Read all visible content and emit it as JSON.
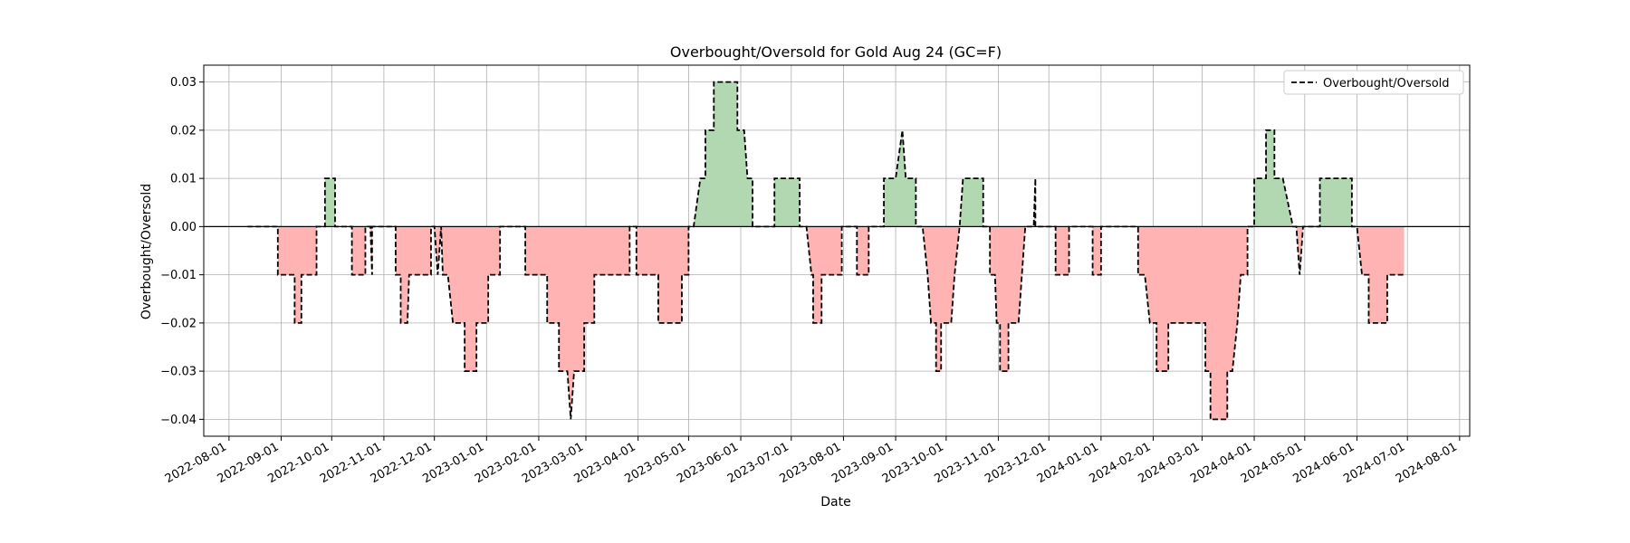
{
  "chart_data": {
    "type": "area",
    "title": "Overbought/Oversold for Gold Aug 24 (GC=F)",
    "xlabel": "Date",
    "ylabel": "Overbought/Oversold",
    "legend": {
      "placement": "upper right",
      "entries": [
        "Overbought/Oversold"
      ]
    },
    "grid": true,
    "xlim": [
      "2022-07-17",
      "2024-08-07"
    ],
    "ylim": [
      -0.0435,
      0.0335
    ],
    "x_ticks": [
      "2022-08-01",
      "2022-09-01",
      "2022-10-01",
      "2022-11-01",
      "2022-12-01",
      "2023-01-01",
      "2023-02-01",
      "2023-03-01",
      "2023-04-01",
      "2023-05-01",
      "2023-06-01",
      "2023-07-01",
      "2023-08-01",
      "2023-09-01",
      "2023-10-01",
      "2023-11-01",
      "2023-12-01",
      "2024-01-01",
      "2024-02-01",
      "2024-03-01",
      "2024-04-01",
      "2024-05-01",
      "2024-06-01",
      "2024-07-01",
      "2024-08-01"
    ],
    "y_ticks": [
      "−0.04",
      "−0.03",
      "−0.02",
      "−0.01",
      "0.00",
      "0.01",
      "0.02",
      "0.03"
    ],
    "y_tick_values": [
      -0.04,
      -0.03,
      -0.02,
      -0.01,
      0.0,
      0.01,
      0.02,
      0.03
    ],
    "fill_colors": {
      "positive": "#b2d8b2",
      "negative": "#ffb3b3"
    },
    "line_color": "#000000",
    "series": [
      {
        "name": "Overbought/Oversold",
        "points": [
          [
            "2022-08-12",
            0
          ],
          [
            "2022-08-30",
            0
          ],
          [
            "2022-08-30",
            -0.01
          ],
          [
            "2022-09-09",
            -0.01
          ],
          [
            "2022-09-09",
            -0.02
          ],
          [
            "2022-09-13",
            -0.02
          ],
          [
            "2022-09-13",
            -0.01
          ],
          [
            "2022-09-22",
            -0.01
          ],
          [
            "2022-09-22",
            0
          ],
          [
            "2022-09-27",
            0
          ],
          [
            "2022-09-27",
            0.01
          ],
          [
            "2022-10-03",
            0.01
          ],
          [
            "2022-10-03",
            0
          ],
          [
            "2022-10-10",
            0
          ],
          [
            "2022-10-13",
            0
          ],
          [
            "2022-10-13",
            -0.01
          ],
          [
            "2022-10-21",
            -0.01
          ],
          [
            "2022-10-21",
            0
          ],
          [
            "2022-10-24",
            0
          ],
          [
            "2022-10-25",
            -0.01
          ],
          [
            "2022-10-25",
            0
          ],
          [
            "2022-11-07",
            0
          ],
          [
            "2022-11-08",
            0
          ],
          [
            "2022-11-08",
            -0.01
          ],
          [
            "2022-11-11",
            -0.01
          ],
          [
            "2022-11-11",
            -0.02
          ],
          [
            "2022-11-15",
            -0.02
          ],
          [
            "2022-11-16",
            -0.01
          ],
          [
            "2022-11-29",
            -0.01
          ],
          [
            "2022-11-29",
            0
          ],
          [
            "2022-12-01",
            0
          ],
          [
            "2022-12-03",
            -0.01
          ],
          [
            "2022-12-05",
            0
          ],
          [
            "2022-12-06",
            -0.01
          ],
          [
            "2022-12-09",
            -0.01
          ],
          [
            "2022-12-12",
            -0.02
          ],
          [
            "2022-12-19",
            -0.02
          ],
          [
            "2022-12-19",
            -0.03
          ],
          [
            "2022-12-26",
            -0.03
          ],
          [
            "2022-12-26",
            -0.02
          ],
          [
            "2023-01-02",
            -0.02
          ],
          [
            "2023-01-02",
            -0.01
          ],
          [
            "2023-01-09",
            -0.01
          ],
          [
            "2023-01-09",
            0
          ],
          [
            "2023-01-13",
            0
          ],
          [
            "2023-01-23",
            0
          ],
          [
            "2023-01-24",
            0
          ],
          [
            "2023-01-24",
            -0.01
          ],
          [
            "2023-02-06",
            -0.01
          ],
          [
            "2023-02-06",
            -0.02
          ],
          [
            "2023-02-13",
            -0.02
          ],
          [
            "2023-02-13",
            -0.03
          ],
          [
            "2023-02-18",
            -0.03
          ],
          [
            "2023-02-20",
            -0.04
          ],
          [
            "2023-02-22",
            -0.03
          ],
          [
            "2023-02-28",
            -0.03
          ],
          [
            "2023-02-28",
            -0.02
          ],
          [
            "2023-03-06",
            -0.02
          ],
          [
            "2023-03-06",
            -0.01
          ],
          [
            "2023-03-27",
            -0.01
          ],
          [
            "2023-03-27",
            0
          ],
          [
            "2023-03-31",
            0
          ],
          [
            "2023-03-31",
            -0.01
          ],
          [
            "2023-04-13",
            -0.01
          ],
          [
            "2023-04-13",
            -0.02
          ],
          [
            "2023-04-27",
            -0.02
          ],
          [
            "2023-04-27",
            -0.01
          ],
          [
            "2023-05-01",
            -0.01
          ],
          [
            "2023-05-01",
            0
          ],
          [
            "2023-05-04",
            0
          ],
          [
            "2023-05-08",
            0.01
          ],
          [
            "2023-05-11",
            0.01
          ],
          [
            "2023-05-11",
            0.02
          ],
          [
            "2023-05-16",
            0.02
          ],
          [
            "2023-05-16",
            0.03
          ],
          [
            "2023-05-30",
            0.03
          ],
          [
            "2023-05-30",
            0.02
          ],
          [
            "2023-06-03",
            0.02
          ],
          [
            "2023-06-05",
            0.01
          ],
          [
            "2023-06-08",
            0.01
          ],
          [
            "2023-06-08",
            0
          ],
          [
            "2023-06-21",
            0
          ],
          [
            "2023-06-21",
            0.01
          ],
          [
            "2023-07-06",
            0.01
          ],
          [
            "2023-07-06",
            0
          ],
          [
            "2023-07-10",
            0
          ],
          [
            "2023-07-10",
            0
          ],
          [
            "2023-07-13",
            -0.01
          ],
          [
            "2023-07-14",
            -0.01
          ],
          [
            "2023-07-14",
            -0.02
          ],
          [
            "2023-07-19",
            -0.02
          ],
          [
            "2023-07-19",
            -0.01
          ],
          [
            "2023-07-31",
            -0.01
          ],
          [
            "2023-07-31",
            0
          ],
          [
            "2023-08-05",
            0
          ],
          [
            "2023-08-09",
            0
          ],
          [
            "2023-08-09",
            -0.01
          ],
          [
            "2023-08-16",
            -0.01
          ],
          [
            "2023-08-16",
            0
          ],
          [
            "2023-08-25",
            0
          ],
          [
            "2023-08-25",
            0.01
          ],
          [
            "2023-09-01",
            0.01
          ],
          [
            "2023-09-05",
            0.02
          ],
          [
            "2023-09-07",
            0.01
          ],
          [
            "2023-09-13",
            0.01
          ],
          [
            "2023-09-13",
            0
          ],
          [
            "2023-09-17",
            0
          ],
          [
            "2023-09-20",
            -0.01
          ],
          [
            "2023-09-22",
            -0.02
          ],
          [
            "2023-09-25",
            -0.02
          ],
          [
            "2023-09-25",
            -0.03
          ],
          [
            "2023-09-28",
            -0.03
          ],
          [
            "2023-09-28",
            -0.02
          ],
          [
            "2023-10-04",
            -0.02
          ],
          [
            "2023-10-06",
            -0.01
          ],
          [
            "2023-10-09",
            0
          ],
          [
            "2023-10-11",
            0.01
          ],
          [
            "2023-10-23",
            0.01
          ],
          [
            "2023-10-23",
            0
          ],
          [
            "2023-10-27",
            0
          ],
          [
            "2023-10-27",
            -0.01
          ],
          [
            "2023-10-30",
            -0.01
          ],
          [
            "2023-10-31",
            -0.02
          ],
          [
            "2023-11-02",
            -0.02
          ],
          [
            "2023-11-02",
            -0.03
          ],
          [
            "2023-11-07",
            -0.03
          ],
          [
            "2023-11-07",
            -0.02
          ],
          [
            "2023-11-13",
            -0.02
          ],
          [
            "2023-11-15",
            -0.01
          ],
          [
            "2023-11-17",
            0
          ],
          [
            "2023-11-17",
            0
          ],
          [
            "2023-11-22",
            0
          ],
          [
            "2023-11-23",
            0.01
          ],
          [
            "2023-11-23",
            0
          ],
          [
            "2023-11-30",
            0
          ],
          [
            "2023-12-05",
            0
          ],
          [
            "2023-12-05",
            -0.01
          ],
          [
            "2023-12-13",
            -0.01
          ],
          [
            "2023-12-13",
            0
          ],
          [
            "2023-12-27",
            0
          ],
          [
            "2023-12-27",
            -0.01
          ],
          [
            "2024-01-01",
            -0.01
          ],
          [
            "2024-01-01",
            0
          ],
          [
            "2024-01-03",
            0
          ],
          [
            "2024-01-20",
            0
          ],
          [
            "2024-01-23",
            0
          ],
          [
            "2024-01-23",
            -0.01
          ],
          [
            "2024-01-27",
            -0.01
          ],
          [
            "2024-01-30",
            -0.02
          ],
          [
            "2024-02-03",
            -0.02
          ],
          [
            "2024-02-03",
            -0.03
          ],
          [
            "2024-02-10",
            -0.03
          ],
          [
            "2024-02-10",
            -0.02
          ],
          [
            "2024-03-03",
            -0.02
          ],
          [
            "2024-03-03",
            -0.03
          ],
          [
            "2024-03-06",
            -0.03
          ],
          [
            "2024-03-06",
            -0.04
          ],
          [
            "2024-03-16",
            -0.04
          ],
          [
            "2024-03-16",
            -0.03
          ],
          [
            "2024-03-19",
            -0.03
          ],
          [
            "2024-03-22",
            -0.02
          ],
          [
            "2024-03-24",
            -0.01
          ],
          [
            "2024-03-28",
            -0.01
          ],
          [
            "2024-03-28",
            0
          ],
          [
            "2024-04-01",
            0
          ],
          [
            "2024-04-01",
            0.01
          ],
          [
            "2024-04-08",
            0.01
          ],
          [
            "2024-04-08",
            0.02
          ],
          [
            "2024-04-13",
            0.02
          ],
          [
            "2024-04-13",
            0.01
          ],
          [
            "2024-04-18",
            0.01
          ],
          [
            "2024-04-24",
            0
          ],
          [
            "2024-04-26",
            0
          ],
          [
            "2024-04-28",
            -0.01
          ],
          [
            "2024-04-30",
            0
          ],
          [
            "2024-05-10",
            0
          ],
          [
            "2024-05-10",
            0.01
          ],
          [
            "2024-05-29",
            0.01
          ],
          [
            "2024-05-29",
            0
          ],
          [
            "2024-06-01",
            0
          ],
          [
            "2024-06-04",
            -0.01
          ],
          [
            "2024-06-08",
            -0.01
          ],
          [
            "2024-06-08",
            -0.02
          ],
          [
            "2024-06-19",
            -0.02
          ],
          [
            "2024-06-19",
            -0.01
          ],
          [
            "2024-06-29",
            -0.01
          ]
        ]
      }
    ]
  }
}
